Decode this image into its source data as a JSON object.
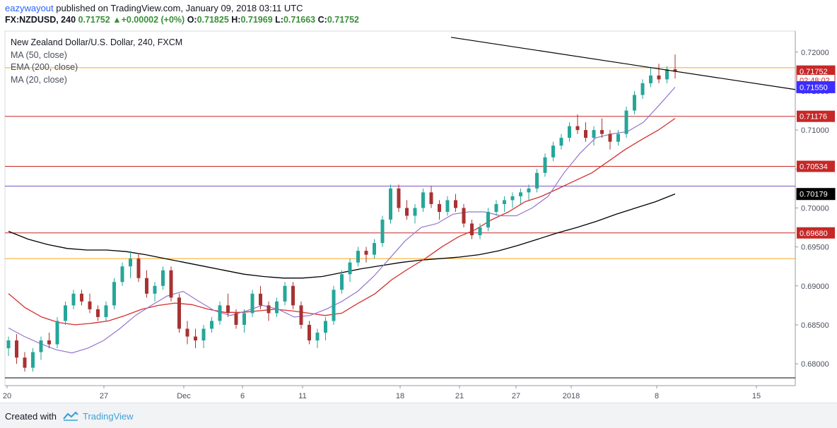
{
  "header": {
    "author": "eazywayout",
    "published": " published on TradingView.com, January 09, 2018 03:11 UTC",
    "symbol": "FX:NZDUSD, 240",
    "last": "0.71752",
    "change": "+0.00002 (+0%)",
    "open_label": "O:",
    "open": "0.71825",
    "high_label": "H:",
    "high": "0.71969",
    "low_label": "L:",
    "low": "0.71663",
    "close_label": "C:",
    "close": "0.71752"
  },
  "legend": {
    "main": "New Zealand Dollar/U.S. Dollar, 240, FXCM",
    "items": [
      "MA (50, close)",
      "EMA (200, close)",
      "MA (20, close)"
    ]
  },
  "footer": {
    "created": "Created with",
    "brand": "TradingView"
  },
  "colors": {
    "up": "#26a69a",
    "down": "#a83232",
    "horizontal_red": "#c62828",
    "horizontal_orange": "#f5a623",
    "horizontal_purple": "#7e57c2",
    "ma50": "#d32f2f",
    "ema200": "#000000",
    "ma20": "#9575cd",
    "trendline": "#000000"
  },
  "chart_data": {
    "type": "candlestick",
    "title": "New Zealand Dollar/U.S. Dollar, 240, FXCM",
    "ylim": [
      0.6772,
      0.7227
    ],
    "y_ticks": [
      "0.68000",
      "0.68500",
      "0.69000",
      "0.69500",
      "0.70000",
      "0.70500",
      "0.71000",
      "0.71500",
      "0.72000"
    ],
    "x_ticks": [
      "20",
      "27",
      "Dec",
      "6",
      "11",
      "18",
      "21",
      "27",
      "2018",
      "8",
      "15"
    ],
    "horizontal_levels": [
      {
        "value": 0.71176,
        "label": "0.71176",
        "color": "#c62828"
      },
      {
        "value": 0.70534,
        "label": "0.70534",
        "color": "#c62828"
      },
      {
        "value": 0.7028,
        "color": "#7e57c2"
      },
      {
        "value": 0.6968,
        "label": "0.69680",
        "color": "#c62828"
      },
      {
        "value": 0.6935,
        "color": "#f5a623"
      },
      {
        "value": 0.718,
        "color": "#f5a623"
      },
      {
        "value": 0.6782,
        "color": "#000000"
      }
    ],
    "trendline": {
      "from": [
        0.7219
      ],
      "to": [
        0.7152
      ]
    },
    "price_labels": [
      {
        "value": 0.71752,
        "label": "0.71752",
        "bg": "#c62828",
        "fg": "#ffffff"
      },
      {
        "value": 0.7164,
        "label": "02:48:02",
        "bg": "#ffffff",
        "fg": "#c62828"
      },
      {
        "value": 0.7155,
        "label": "0.71550",
        "bg": "#3d2dff",
        "fg": "#ffffff"
      },
      {
        "value": 0.70179,
        "label": "0.70179",
        "bg": "#000000",
        "fg": "#ffffff"
      }
    ],
    "ma20": [
      0.6846,
      0.6835,
      0.6826,
      0.6818,
      0.6814,
      0.682,
      0.683,
      0.6845,
      0.6862,
      0.6875,
      0.6887,
      0.6893,
      0.688,
      0.6868,
      0.6862,
      0.6868,
      0.6875,
      0.687,
      0.686,
      0.6862,
      0.687,
      0.688,
      0.6893,
      0.6912,
      0.6935,
      0.6958,
      0.6975,
      0.698,
      0.6992,
      0.6995,
      0.6995,
      0.699,
      0.699,
      0.7,
      0.7015,
      0.7045,
      0.707,
      0.709,
      0.7095,
      0.7098,
      0.711,
      0.7132,
      0.7155
    ],
    "ma50": [
      0.689,
      0.6872,
      0.686,
      0.6853,
      0.685,
      0.6852,
      0.6855,
      0.6862,
      0.687,
      0.6875,
      0.6878,
      0.6876,
      0.687,
      0.6866,
      0.6866,
      0.6868,
      0.687,
      0.6868,
      0.6865,
      0.6862,
      0.6865,
      0.6878,
      0.689,
      0.6908,
      0.6922,
      0.6935,
      0.695,
      0.6963,
      0.6972,
      0.6985,
      0.6995,
      0.7008,
      0.7015,
      0.7025,
      0.7035,
      0.7045,
      0.706,
      0.7075,
      0.7088,
      0.71,
      0.7115
    ],
    "ema200": [
      0.697,
      0.696,
      0.6953,
      0.6948,
      0.6946,
      0.6946,
      0.6944,
      0.694,
      0.6935,
      0.693,
      0.6925,
      0.692,
      0.6915,
      0.6912,
      0.691,
      0.691,
      0.6912,
      0.6917,
      0.6922,
      0.6926,
      0.693,
      0.6933,
      0.6935,
      0.6937,
      0.694,
      0.6945,
      0.6952,
      0.696,
      0.6968,
      0.6975,
      0.6983,
      0.6992,
      0.7,
      0.7008,
      0.7018
    ],
    "candles": [
      [
        0.682,
        0.6835,
        0.681,
        0.683
      ],
      [
        0.683,
        0.6838,
        0.68,
        0.6808
      ],
      [
        0.6808,
        0.6815,
        0.679,
        0.6795
      ],
      [
        0.6795,
        0.682,
        0.679,
        0.6815
      ],
      [
        0.6815,
        0.6835,
        0.6805,
        0.683
      ],
      [
        0.683,
        0.684,
        0.682,
        0.6825
      ],
      [
        0.6825,
        0.686,
        0.682,
        0.6855
      ],
      [
        0.6855,
        0.688,
        0.685,
        0.6875
      ],
      [
        0.6875,
        0.6895,
        0.687,
        0.689
      ],
      [
        0.689,
        0.6895,
        0.6875,
        0.688
      ],
      [
        0.688,
        0.689,
        0.6865,
        0.687
      ],
      [
        0.687,
        0.6875,
        0.6855,
        0.686
      ],
      [
        0.686,
        0.688,
        0.6855,
        0.6875
      ],
      [
        0.6875,
        0.691,
        0.687,
        0.6905
      ],
      [
        0.6905,
        0.693,
        0.69,
        0.6925
      ],
      [
        0.6925,
        0.6945,
        0.691,
        0.6935
      ],
      [
        0.6935,
        0.6942,
        0.6905,
        0.691
      ],
      [
        0.691,
        0.692,
        0.6885,
        0.689
      ],
      [
        0.689,
        0.6905,
        0.688,
        0.69
      ],
      [
        0.69,
        0.6925,
        0.6895,
        0.692
      ],
      [
        0.692,
        0.6925,
        0.688,
        0.6885
      ],
      [
        0.6885,
        0.689,
        0.684,
        0.6845
      ],
      [
        0.6845,
        0.6855,
        0.6825,
        0.6835
      ],
      [
        0.6835,
        0.6845,
        0.682,
        0.683
      ],
      [
        0.683,
        0.685,
        0.682,
        0.6845
      ],
      [
        0.6845,
        0.686,
        0.684,
        0.6855
      ],
      [
        0.6855,
        0.688,
        0.685,
        0.6875
      ],
      [
        0.6875,
        0.689,
        0.686,
        0.6865
      ],
      [
        0.6865,
        0.687,
        0.6845,
        0.685
      ],
      [
        0.685,
        0.687,
        0.684,
        0.6865
      ],
      [
        0.6865,
        0.6895,
        0.686,
        0.689
      ],
      [
        0.689,
        0.69,
        0.687,
        0.6875
      ],
      [
        0.6875,
        0.688,
        0.6855,
        0.6865
      ],
      [
        0.6865,
        0.6885,
        0.686,
        0.688
      ],
      [
        0.688,
        0.6905,
        0.6875,
        0.69
      ],
      [
        0.69,
        0.6905,
        0.687,
        0.6875
      ],
      [
        0.6875,
        0.688,
        0.6845,
        0.685
      ],
      [
        0.685,
        0.6855,
        0.6825,
        0.683
      ],
      [
        0.683,
        0.6845,
        0.682,
        0.684
      ],
      [
        0.684,
        0.686,
        0.683,
        0.6855
      ],
      [
        0.6855,
        0.69,
        0.685,
        0.6895
      ],
      [
        0.6895,
        0.692,
        0.689,
        0.6915
      ],
      [
        0.6915,
        0.6935,
        0.6905,
        0.693
      ],
      [
        0.693,
        0.695,
        0.6925,
        0.6945
      ],
      [
        0.6945,
        0.695,
        0.693,
        0.694
      ],
      [
        0.694,
        0.696,
        0.6935,
        0.6955
      ],
      [
        0.6955,
        0.699,
        0.695,
        0.6985
      ],
      [
        0.6985,
        0.703,
        0.698,
        0.7025
      ],
      [
        0.7025,
        0.703,
        0.6995,
        0.7
      ],
      [
        0.7,
        0.701,
        0.6985,
        0.699
      ],
      [
        0.699,
        0.7005,
        0.698,
        0.7
      ],
      [
        0.7,
        0.7025,
        0.6995,
        0.702
      ],
      [
        0.702,
        0.7028,
        0.7,
        0.7005
      ],
      [
        0.7005,
        0.701,
        0.6985,
        0.6995
      ],
      [
        0.6995,
        0.7015,
        0.699,
        0.701
      ],
      [
        0.701,
        0.7018,
        0.6995,
        0.7
      ],
      [
        0.7,
        0.7005,
        0.6975,
        0.698
      ],
      [
        0.698,
        0.6985,
        0.696,
        0.6965
      ],
      [
        0.6965,
        0.698,
        0.696,
        0.6975
      ],
      [
        0.6975,
        0.7,
        0.697,
        0.6995
      ],
      [
        0.6995,
        0.701,
        0.699,
        0.7005
      ],
      [
        0.7005,
        0.7015,
        0.6995,
        0.701
      ],
      [
        0.701,
        0.702,
        0.7,
        0.7015
      ],
      [
        0.7015,
        0.7025,
        0.7005,
        0.702
      ],
      [
        0.702,
        0.703,
        0.701,
        0.7025
      ],
      [
        0.7025,
        0.705,
        0.702,
        0.7045
      ],
      [
        0.7045,
        0.707,
        0.704,
        0.7065
      ],
      [
        0.7065,
        0.7085,
        0.706,
        0.708
      ],
      [
        0.708,
        0.7095,
        0.7075,
        0.709
      ],
      [
        0.709,
        0.711,
        0.7085,
        0.7105
      ],
      [
        0.7105,
        0.712,
        0.7095,
        0.71
      ],
      [
        0.71,
        0.711,
        0.7085,
        0.709
      ],
      [
        0.709,
        0.7105,
        0.708,
        0.71
      ],
      [
        0.71,
        0.7115,
        0.709,
        0.7095
      ],
      [
        0.7095,
        0.71,
        0.7075,
        0.7085
      ],
      [
        0.7085,
        0.71,
        0.708,
        0.7095
      ],
      [
        0.7095,
        0.713,
        0.709,
        0.7125
      ],
      [
        0.7125,
        0.715,
        0.712,
        0.7145
      ],
      [
        0.7145,
        0.7165,
        0.714,
        0.716
      ],
      [
        0.716,
        0.718,
        0.7155,
        0.717
      ],
      [
        0.717,
        0.7185,
        0.716,
        0.7165
      ],
      [
        0.7165,
        0.7182,
        0.716,
        0.7178
      ],
      [
        0.7178,
        0.7197,
        0.7166,
        0.7175
      ]
    ]
  }
}
